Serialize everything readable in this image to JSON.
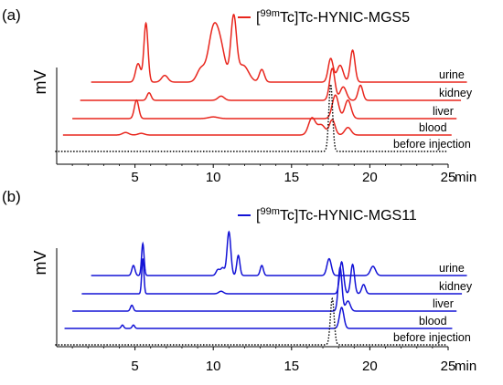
{
  "chart_data": [
    {
      "type": "line",
      "panel_label": "(a)",
      "legend": {
        "iso_sup": "99m",
        "text_pre": "[",
        "text_post": "Tc]Tc-HYNIC-MGS5",
        "color": "#e8261d"
      },
      "ylabel": "mV",
      "xlim": [
        0,
        25
      ],
      "xticks": [
        5,
        10,
        15,
        20,
        25
      ],
      "x_unit": "min",
      "series": [
        {
          "name": "urine",
          "color": "#e8261d",
          "dashed": false,
          "x_offset": 2.2,
          "peaks": [
            [
              5.2,
              22,
              0.16
            ],
            [
              5.7,
              70,
              0.13
            ],
            [
              6.9,
              8,
              0.2
            ],
            [
              9.2,
              15,
              0.25
            ],
            [
              10.0,
              60,
              0.32
            ],
            [
              10.5,
              33,
              0.3
            ],
            [
              11.3,
              75,
              0.18
            ],
            [
              11.9,
              20,
              0.35
            ],
            [
              13.1,
              15,
              0.16
            ],
            [
              17.5,
              28,
              0.16
            ],
            [
              18.1,
              20,
              0.2
            ],
            [
              18.9,
              38,
              0.15
            ]
          ]
        },
        {
          "name": "kidney",
          "color": "#e8261d",
          "dashed": false,
          "x_offset": 1.5,
          "peaks": [
            [
              5.9,
              9,
              0.13
            ],
            [
              10.5,
              5,
              0.2
            ],
            [
              17.6,
              38,
              0.17
            ],
            [
              18.3,
              16,
              0.2
            ],
            [
              19.4,
              18,
              0.15
            ]
          ]
        },
        {
          "name": "liver",
          "color": "#e8261d",
          "dashed": false,
          "x_offset": 1.0,
          "peaks": [
            [
              5.1,
              22,
              0.14
            ],
            [
              10.0,
              2,
              0.3
            ],
            [
              17.8,
              28,
              0.2
            ],
            [
              18.6,
              22,
              0.2
            ]
          ]
        },
        {
          "name": "blood",
          "color": "#e8261d",
          "dashed": false,
          "x_offset": 0.4,
          "peaks": [
            [
              4.4,
              3,
              0.2
            ],
            [
              5.4,
              2,
              0.2
            ],
            [
              16.3,
              20,
              0.22
            ],
            [
              16.9,
              12,
              0.25
            ],
            [
              17.6,
              18,
              0.18
            ],
            [
              18.6,
              9,
              0.2
            ]
          ]
        },
        {
          "name": "before injection",
          "color": "#000000",
          "dashed": true,
          "x_offset": -0.1,
          "peaks": [
            [
              17.5,
              80,
              0.12
            ]
          ]
        }
      ]
    },
    {
      "type": "line",
      "panel_label": "(b)",
      "legend": {
        "iso_sup": "99m",
        "text_pre": "[",
        "text_post": "Tc]Tc-HYNIC-MGS11",
        "color": "#1313d6"
      },
      "ylabel": "mV",
      "xlim": [
        0,
        25
      ],
      "xticks": [
        5,
        10,
        15,
        20,
        25
      ],
      "x_unit": "min",
      "series": [
        {
          "name": "urine",
          "color": "#1313d6",
          "dashed": false,
          "x_offset": 2.2,
          "peaks": [
            [
              4.9,
              12,
              0.1
            ],
            [
              5.5,
              38,
              0.08
            ],
            [
              10.3,
              7,
              0.12
            ],
            [
              10.6,
              9,
              0.12
            ],
            [
              11.0,
              52,
              0.12
            ],
            [
              11.6,
              24,
              0.1
            ],
            [
              13.1,
              12,
              0.1
            ],
            [
              17.4,
              20,
              0.14
            ],
            [
              20.2,
              11,
              0.16
            ]
          ]
        },
        {
          "name": "kidney",
          "color": "#1313d6",
          "dashed": false,
          "x_offset": 1.6,
          "peaks": [
            [
              5.5,
              42,
              0.07
            ],
            [
              10.5,
              3,
              0.15
            ],
            [
              18.2,
              38,
              0.13
            ],
            [
              18.9,
              35,
              0.12
            ],
            [
              19.6,
              11,
              0.12
            ]
          ]
        },
        {
          "name": "liver",
          "color": "#1313d6",
          "dashed": false,
          "x_offset": 1.0,
          "peaks": [
            [
              4.8,
              7,
              0.09
            ],
            [
              18.1,
              52,
              0.12
            ],
            [
              18.6,
              12,
              0.15
            ]
          ]
        },
        {
          "name": "blood",
          "color": "#1313d6",
          "dashed": false,
          "x_offset": 0.5,
          "peaks": [
            [
              4.2,
              4,
              0.08
            ],
            [
              4.9,
              4,
              0.08
            ],
            [
              18.2,
              25,
              0.14
            ]
          ]
        },
        {
          "name": "before injection",
          "color": "#000000",
          "dashed": true,
          "x_offset": -0.1,
          "peaks": [
            [
              17.6,
              55,
              0.12
            ]
          ]
        }
      ]
    }
  ]
}
